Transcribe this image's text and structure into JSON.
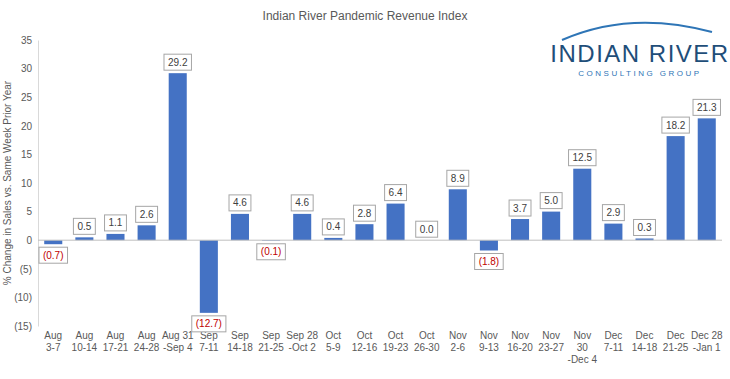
{
  "chart_data": {
    "type": "bar",
    "title": "Indian River Pandemic Revenue Index",
    "y_label": "% Change in Sales vs. Same Week Prior Year",
    "annotations": [
      "INDIAN RIVER",
      "CONSULTING GROUP"
    ],
    "categories": [
      "Aug\n3-7",
      "Aug\n10-14",
      "Aug\n17-21",
      "Aug\n24-28",
      "Aug 31\n-Sep 4",
      "Sep\n7-11",
      "Sep\n14-18",
      "Sep\n21-25",
      "Sep 28\n-Oct 2",
      "Oct\n5-9",
      "Oct\n12-16",
      "Oct\n19-23",
      "Oct\n26-30",
      "Nov\n2-6",
      "Nov\n9-13",
      "Nov\n16-20",
      "Nov\n23-27",
      "Nov\n30\n-Dec 4",
      "Dec\n7-11",
      "Dec\n14-18",
      "Dec\n21-25",
      "Dec 28\n-Jan 1"
    ],
    "values": [
      -0.7,
      0.5,
      1.1,
      2.6,
      29.2,
      -12.7,
      4.6,
      -0.1,
      4.6,
      0.4,
      2.8,
      6.4,
      0.0,
      8.9,
      -1.8,
      3.7,
      5.0,
      12.5,
      2.9,
      0.3,
      18.2,
      21.3
    ],
    "value_labels": [
      "(0.7)",
      "0.5",
      "1.1",
      "2.6",
      "29.2",
      "(12.7)",
      "4.6",
      "(0.1)",
      "4.6",
      "0.4",
      "2.8",
      "6.4",
      "0.0",
      "8.9",
      "(1.8)",
      "3.7",
      "5.0",
      "12.5",
      "2.9",
      "0.3",
      "18.2",
      "21.3"
    ],
    "color": "#4472c4",
    "ylim": [
      -15,
      35
    ],
    "yticks": [
      {
        "value": -15,
        "label": "(15)"
      },
      {
        "value": -10,
        "label": "(10)"
      },
      {
        "value": -5,
        "label": "(5)"
      },
      0,
      5,
      10,
      15,
      20,
      25,
      30,
      35
    ],
    "grid": false,
    "data_labels": true
  }
}
